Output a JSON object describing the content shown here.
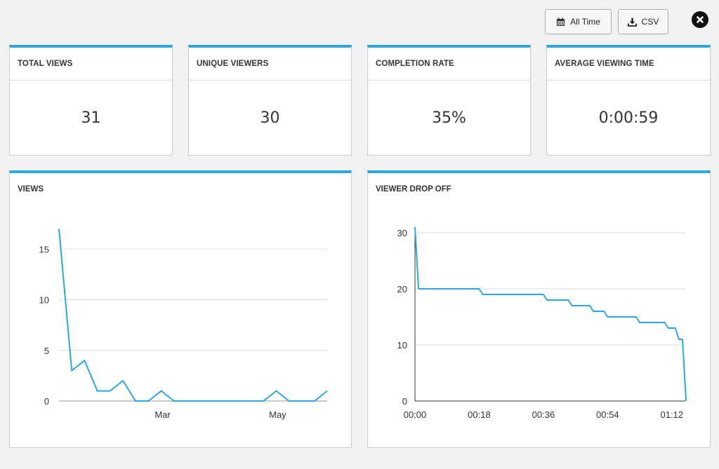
{
  "toolbar": {
    "range_label": "All Time",
    "csv_label": "CSV",
    "range_icon": "calendar-icon",
    "csv_icon": "download-icon",
    "close_icon": "close-icon"
  },
  "stats": [
    {
      "label": "TOTAL VIEWS",
      "value": "31"
    },
    {
      "label": "UNIQUE VIEWERS",
      "value": "30"
    },
    {
      "label": "COMPLETION RATE",
      "value": "35%"
    },
    {
      "label": "AVERAGE VIEWING TIME",
      "value": "0:00:59"
    }
  ],
  "accent_color": "#2ba7e2",
  "chart_data": [
    {
      "type": "line",
      "title": "VIEWS",
      "x_tick_labels": [
        "Mar",
        "May"
      ],
      "ylim": [
        0,
        17
      ],
      "y_ticks": [
        0,
        5,
        10,
        15
      ],
      "grid": true,
      "values": [
        17,
        3,
        4,
        1,
        1,
        2,
        0,
        0,
        1,
        0,
        0,
        0,
        0,
        0,
        0,
        0,
        0,
        1,
        0,
        0,
        0,
        1
      ]
    },
    {
      "type": "line",
      "title": "VIEWER DROP OFF",
      "x_tick_labels": [
        "00:00",
        "00:18",
        "00:36",
        "00:54",
        "01:12"
      ],
      "x_ticks": [
        0,
        18,
        36,
        54,
        72
      ],
      "ylim": [
        0,
        30
      ],
      "y_ticks": [
        0,
        10,
        20,
        30
      ],
      "grid": true,
      "points": [
        [
          0,
          31
        ],
        [
          1,
          20
        ],
        [
          18,
          20
        ],
        [
          19,
          19
        ],
        [
          36,
          19
        ],
        [
          37,
          18
        ],
        [
          43,
          18
        ],
        [
          44,
          17
        ],
        [
          49,
          17
        ],
        [
          50,
          16
        ],
        [
          53,
          16
        ],
        [
          54,
          15
        ],
        [
          62,
          15
        ],
        [
          63,
          14
        ],
        [
          70,
          14
        ],
        [
          71,
          13
        ],
        [
          73,
          13
        ],
        [
          74,
          11
        ],
        [
          75,
          11
        ],
        [
          76,
          0
        ]
      ]
    }
  ]
}
